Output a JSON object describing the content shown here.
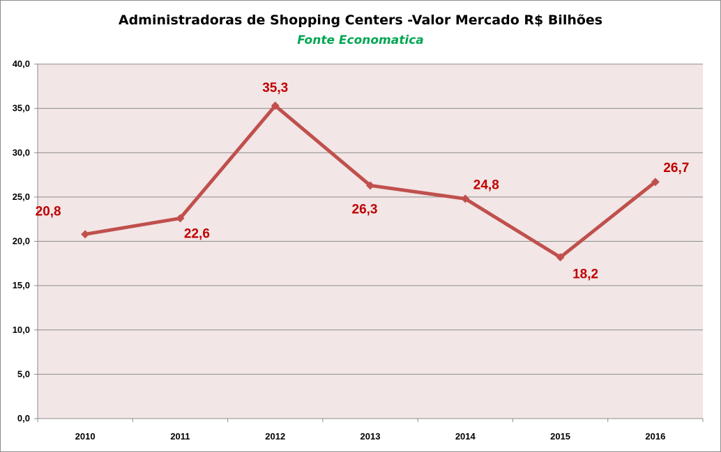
{
  "chart_data": {
    "type": "line",
    "title": "Administradoras de Shopping Centers -Valor Mercado R$ Bilhões",
    "subtitle": "Fonte Economatica",
    "categories": [
      "2010",
      "2011",
      "2012",
      "2013",
      "2014",
      "2015",
      "2016"
    ],
    "series": [
      {
        "values": [
          20.8,
          22.6,
          35.3,
          26.3,
          24.8,
          18.2,
          26.7
        ],
        "data_labels": [
          "20,8",
          "22,6",
          "35,3",
          "26,3",
          "24,8",
          "18,2",
          "26,7"
        ],
        "color": "#c0504d"
      }
    ],
    "ylim": [
      0,
      40
    ],
    "y_ticks": [
      0,
      5,
      10,
      15,
      20,
      25,
      30,
      35,
      40
    ],
    "y_tick_labels": [
      "0,0",
      "5,0",
      "10,0",
      "15,0",
      "20,0",
      "25,0",
      "30,0",
      "35,0",
      "40,0"
    ],
    "grid": true,
    "legend": "none",
    "plot_background": "#f2e6e6",
    "label_color": "#c00000",
    "subtitle_color": "#00a651"
  }
}
